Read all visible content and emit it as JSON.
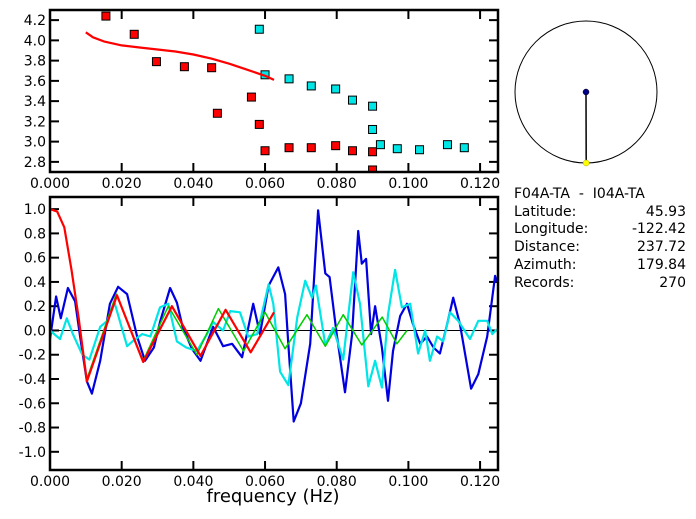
{
  "chart_data": [
    {
      "type": "scatter",
      "title": "",
      "xlabel": "",
      "ylabel": "",
      "xlim": [
        0,
        0.125
      ],
      "ylim": [
        2.7,
        4.3
      ],
      "xticks": [
        "0.000",
        "0.020",
        "0.040",
        "0.060",
        "0.080",
        "0.100",
        "0.120"
      ],
      "yticks": [
        "2.8",
        "3.0",
        "3.2",
        "3.4",
        "3.6",
        "3.8",
        "4.0",
        "4.2"
      ],
      "grid": false,
      "series": [
        {
          "name": "red-points",
          "color": "#ff0000",
          "marker": "square",
          "x": [
            0.0156,
            0.0235,
            0.0297,
            0.0375,
            0.0451,
            0.0467,
            0.0562,
            0.0584,
            0.06,
            0.0667,
            0.0729,
            0.0797,
            0.0844,
            0.09,
            0.09
          ],
          "y": [
            4.24,
            4.06,
            3.79,
            3.74,
            3.73,
            3.28,
            3.44,
            3.17,
            2.91,
            2.94,
            2.94,
            2.96,
            2.91,
            2.9,
            2.72
          ]
        },
        {
          "name": "cyan-points",
          "color": "#00e5e5",
          "marker": "square",
          "x": [
            0.0584,
            0.06,
            0.0667,
            0.0729,
            0.0797,
            0.0844,
            0.09,
            0.09,
            0.0922,
            0.0969,
            0.1031,
            0.1109,
            0.1156
          ],
          "y": [
            4.11,
            3.66,
            3.62,
            3.55,
            3.52,
            3.41,
            3.35,
            3.12,
            2.97,
            2.93,
            2.92,
            2.97,
            2.94
          ]
        },
        {
          "name": "red-curve",
          "color": "#ff0000",
          "marker": "line",
          "x": [
            0.01,
            0.012,
            0.015,
            0.02,
            0.025,
            0.03,
            0.035,
            0.04,
            0.045,
            0.05,
            0.055,
            0.06,
            0.0625
          ],
          "y": [
            4.08,
            4.03,
            3.99,
            3.95,
            3.93,
            3.91,
            3.89,
            3.86,
            3.82,
            3.77,
            3.71,
            3.65,
            3.61
          ]
        }
      ]
    },
    {
      "type": "line",
      "title": "",
      "xlabel": "frequency (Hz)",
      "ylabel": "",
      "xlim": [
        0,
        0.125
      ],
      "ylim": [
        -1.15,
        1.1
      ],
      "xticks": [
        "0.000",
        "0.020",
        "0.040",
        "0.060",
        "0.080",
        "0.100",
        "0.120"
      ],
      "yticks": [
        "1.0",
        "0.8",
        "0.6",
        "0.4",
        "0.2",
        "0.0",
        "-0.2",
        "-0.4",
        "-0.6",
        "-0.8",
        "-1.0"
      ],
      "grid": false,
      "series": [
        {
          "name": "blue",
          "color": "#0000e0",
          "x": [
            0,
            0.0017,
            0.003,
            0.005,
            0.007,
            0.0084,
            0.0103,
            0.0117,
            0.014,
            0.0167,
            0.019,
            0.0215,
            0.0243,
            0.0265,
            0.029,
            0.0307,
            0.0335,
            0.0354,
            0.037,
            0.0396,
            0.042,
            0.0455,
            0.0483,
            0.0508,
            0.0536,
            0.0567,
            0.0586,
            0.061,
            0.0637,
            0.0656,
            0.0665,
            0.068,
            0.07,
            0.0726,
            0.0748,
            0.0768,
            0.078,
            0.08,
            0.0823,
            0.0843,
            0.086,
            0.087,
            0.0882,
            0.0896,
            0.0907,
            0.0926,
            0.0943,
            0.0957,
            0.0977,
            0.0996,
            0.1013,
            0.1033,
            0.1052,
            0.107,
            0.1088,
            0.1108,
            0.1125,
            0.1144,
            0.1175,
            0.1195,
            0.122,
            0.1242,
            0.1247
          ],
          "y": [
            -0.07,
            0.28,
            0.1,
            0.35,
            0.24,
            -0.05,
            -0.42,
            -0.52,
            -0.25,
            0.22,
            0.36,
            0.3,
            -0.05,
            -0.25,
            -0.14,
            0.07,
            0.35,
            0.23,
            0.03,
            -0.15,
            -0.25,
            0.03,
            -0.13,
            -0.11,
            -0.22,
            0.22,
            -0.03,
            0.37,
            0.52,
            0.3,
            -0.11,
            -0.75,
            -0.6,
            -0.11,
            0.99,
            0.47,
            0.44,
            -0.03,
            -0.51,
            -0.03,
            0.82,
            0.55,
            0.59,
            -0.03,
            0.2,
            -0.14,
            -0.58,
            -0.17,
            0.12,
            0.22,
            0.05,
            -0.11,
            -0.05,
            -0.14,
            -0.19,
            0.05,
            0.27,
            0.05,
            -0.48,
            -0.36,
            -0.05,
            0.45,
            0.4
          ]
        },
        {
          "name": "cyan",
          "color": "#00e5e5",
          "x": [
            0,
            0.0028,
            0.0047,
            0.0064,
            0.009,
            0.011,
            0.014,
            0.016,
            0.018,
            0.0215,
            0.023,
            0.0257,
            0.028,
            0.0307,
            0.033,
            0.0354,
            0.038,
            0.041,
            0.0438,
            0.0455,
            0.0483,
            0.0503,
            0.053,
            0.0553,
            0.0578,
            0.061,
            0.0623,
            0.0642,
            0.0665,
            0.069,
            0.0712,
            0.0731,
            0.0742,
            0.0768,
            0.079,
            0.0818,
            0.0846,
            0.0865,
            0.0888,
            0.0907,
            0.0926,
            0.0943,
            0.0963,
            0.0982,
            0.1005,
            0.1027,
            0.1047,
            0.106,
            0.108,
            0.1097,
            0.1116,
            0.1139,
            0.1172,
            0.1195,
            0.122,
            0.1234,
            0.1247
          ],
          "y": [
            0,
            -0.07,
            0.1,
            -0.03,
            -0.2,
            -0.24,
            0.03,
            0.08,
            0.23,
            -0.13,
            -0.09,
            -0.03,
            -0.05,
            0.19,
            0.22,
            -0.09,
            -0.14,
            -0.17,
            -0.03,
            0.07,
            0,
            0.16,
            0.15,
            -0.05,
            -0.03,
            0.38,
            0.22,
            -0.34,
            -0.45,
            0.11,
            0.41,
            0.27,
            0.37,
            -0.12,
            0.02,
            -0.24,
            0.48,
            0.22,
            -0.46,
            -0.25,
            -0.47,
            0.13,
            0.5,
            0.19,
            0.22,
            -0.19,
            0,
            -0.25,
            -0.05,
            -0.09,
            0.15,
            0.08,
            -0.07,
            0.08,
            0.08,
            -0.03,
            0.01
          ]
        },
        {
          "name": "green",
          "color": "#00cc00",
          "x": [
            0.0103,
            0.0185,
            0.026,
            0.033,
            0.041,
            0.047,
            0.054,
            0.06,
            0.0656,
            0.0717,
            0.0768,
            0.0818,
            0.087,
            0.0927,
            0.0968,
            0.0996
          ],
          "y": [
            -0.4,
            0.3,
            -0.25,
            0.2,
            -0.2,
            0.18,
            -0.17,
            0.15,
            -0.15,
            0.13,
            -0.13,
            0.13,
            -0.12,
            0.11,
            -0.11,
            0.0
          ]
        },
        {
          "name": "red",
          "color": "#ff0000",
          "x": [
            0,
            0.002,
            0.004,
            0.006,
            0.008,
            0.0103,
            0.0187,
            0.026,
            0.034,
            0.042,
            0.049,
            0.056,
            0.0625
          ],
          "y": [
            1.0,
            0.98,
            0.85,
            0.5,
            0.1,
            -0.42,
            0.29,
            -0.26,
            0.2,
            -0.21,
            0.17,
            -0.18,
            0.15
          ]
        }
      ]
    }
  ],
  "map": {
    "center_station_color": "#00008b",
    "target_station_color": "#ffff00",
    "azimuth_deg": 179.84
  },
  "info": {
    "pair": "F04A-TA  -  I04A-TA",
    "rows": [
      {
        "label": "Latitude:",
        "value": "45.93"
      },
      {
        "label": "Longitude:",
        "value": "-122.42"
      },
      {
        "label": "Distance:",
        "value": "237.72"
      },
      {
        "label": "Azimuth:",
        "value": "179.84"
      },
      {
        "label": "Records:",
        "value": "270"
      }
    ]
  }
}
